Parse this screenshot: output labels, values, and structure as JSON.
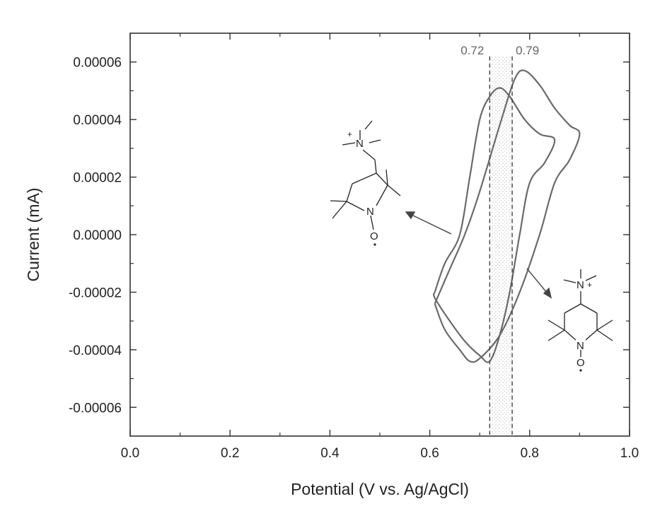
{
  "chart_data": {
    "type": "line",
    "title": "",
    "xlabel": "Potential (V vs. Ag/AgCl)",
    "ylabel": "Current (mA)",
    "xlim": [
      0.0,
      1.0
    ],
    "ylim": [
      -7e-05,
      7e-05
    ],
    "x_ticks": [
      "0.0",
      "0.2",
      "0.4",
      "0.6",
      "0.8",
      "1.0"
    ],
    "y_ticks": [
      "-0.00006",
      "-0.00004",
      "-0.00002",
      "0.00000",
      "0.00002",
      "0.00004",
      "0.00006"
    ],
    "grid": false,
    "series": [
      {
        "values": [
          [
            0.61,
            -2e-05
          ],
          [
            0.63,
            -1e-05
          ],
          [
            0.66,
            0.0
          ],
          [
            0.68,
            2e-05
          ],
          [
            0.7,
            4e-05
          ],
          [
            0.72,
            4.8e-05
          ],
          [
            0.74,
            5.1e-05
          ],
          [
            0.76,
            4.8e-05
          ],
          [
            0.79,
            4e-05
          ],
          [
            0.82,
            3.5e-05
          ],
          [
            0.85,
            3.3e-05
          ],
          [
            0.83,
            2.5e-05
          ],
          [
            0.8,
            1.8e-05
          ],
          [
            0.78,
            0.0
          ],
          [
            0.76,
            -2e-05
          ],
          [
            0.74,
            -3.5e-05
          ],
          [
            0.72,
            -4.4e-05
          ],
          [
            0.7,
            -4.2e-05
          ],
          [
            0.67,
            -3.7e-05
          ],
          [
            0.64,
            -3e-05
          ],
          [
            0.61,
            -2.2e-05
          ],
          [
            0.61,
            -2e-05
          ]
        ]
      },
      {
        "values": [
          [
            0.61,
            -2.4e-05
          ],
          [
            0.64,
            -1.2e-05
          ],
          [
            0.67,
            0.0
          ],
          [
            0.7,
            1.5e-05
          ],
          [
            0.74,
            3.8e-05
          ],
          [
            0.77,
            5.4e-05
          ],
          [
            0.79,
            5.7e-05
          ],
          [
            0.82,
            5.2e-05
          ],
          [
            0.85,
            4.4e-05
          ],
          [
            0.88,
            3.8e-05
          ],
          [
            0.9,
            3.5e-05
          ],
          [
            0.88,
            2.6e-05
          ],
          [
            0.85,
            1.8e-05
          ],
          [
            0.82,
            0.0
          ],
          [
            0.78,
            -2e-05
          ],
          [
            0.74,
            -3.5e-05
          ],
          [
            0.7,
            -4.3e-05
          ],
          [
            0.68,
            -4.4e-05
          ],
          [
            0.66,
            -4e-05
          ],
          [
            0.63,
            -3.3e-05
          ],
          [
            0.61,
            -2.4e-05
          ]
        ]
      }
    ],
    "annotations": [
      {
        "label": "0.72",
        "x": 0.72,
        "style": "dashed-vline"
      },
      {
        "label": "0.79",
        "x": 0.765,
        "style": "dashed-vline"
      }
    ]
  },
  "structures": {
    "left_labels": {
      "n_plus": "N",
      "plus": "+",
      "n_oxyl": "N",
      "oxygen": "O"
    },
    "right_labels": {
      "n_plus": "N",
      "plus": "+",
      "n_oxyl": "N",
      "oxygen": "O"
    }
  }
}
